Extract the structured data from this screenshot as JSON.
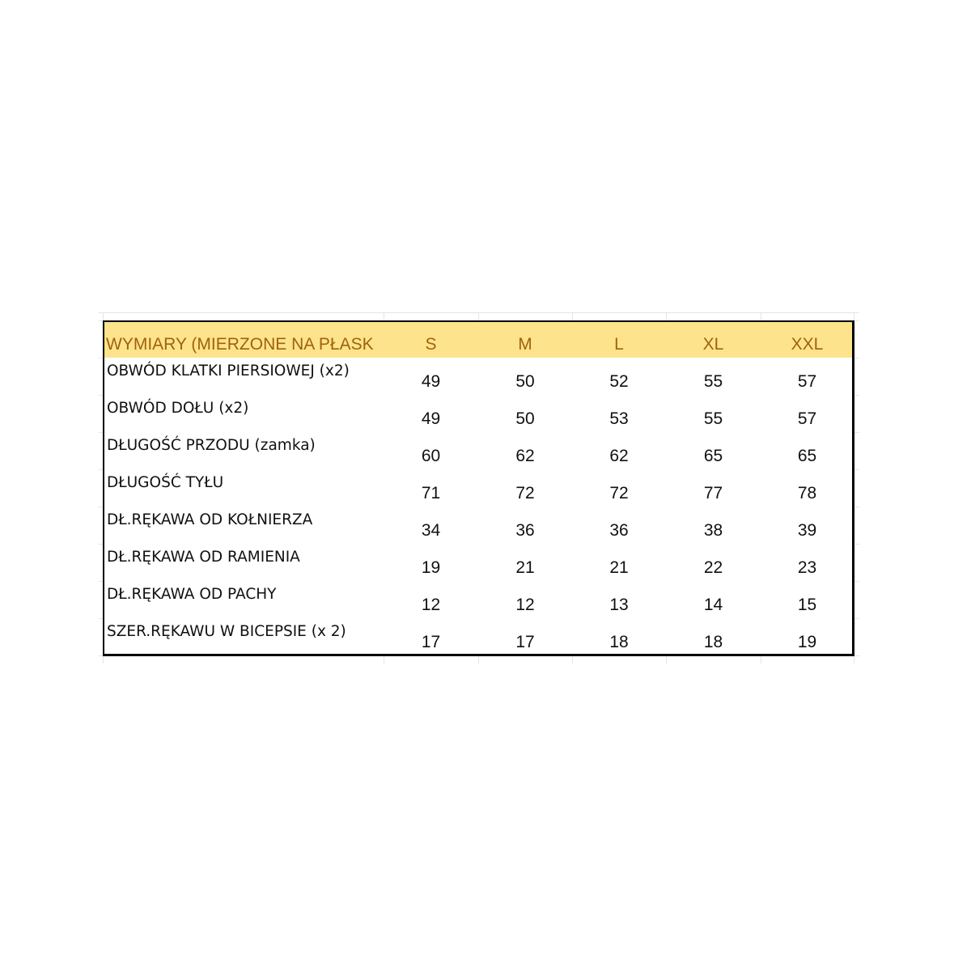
{
  "table": {
    "header": [
      "WYMIARY (MIERZONE NA PŁASK",
      "S",
      "M",
      "L",
      "XL",
      "XXL"
    ],
    "rows": [
      [
        "OBWÓD KLATKI PIERSIOWEJ (x2)",
        49,
        50,
        52,
        55,
        57
      ],
      [
        "OBWÓD DOŁU (x2)",
        49,
        50,
        53,
        55,
        57
      ],
      [
        "DŁUGOŚĆ PRZODU (zamka)",
        60,
        62,
        62,
        65,
        65
      ],
      [
        "DŁUGOŚĆ TYŁU",
        71,
        72,
        72,
        77,
        78
      ],
      [
        "DŁ.RĘKAWA OD KOŁNIERZA",
        34,
        36,
        36,
        38,
        39
      ],
      [
        "DŁ.RĘKAWA OD RAMIENIA",
        19,
        21,
        21,
        22,
        23
      ],
      [
        "DŁ.RĘKAWA OD PACHY",
        12,
        12,
        13,
        14,
        15
      ],
      [
        "SZER.RĘKAWU W BICEPSIE (x 2)",
        17,
        17,
        18,
        18,
        19
      ]
    ]
  }
}
